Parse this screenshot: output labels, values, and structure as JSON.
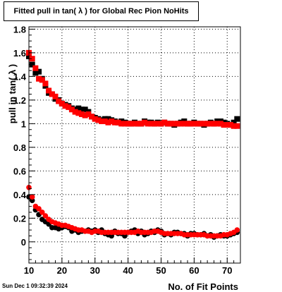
{
  "title": "Fitted pull in tan( λ ) for Global Rec Pion NoHits",
  "footer_date": "Sun Dec  1 09:32:39 2024",
  "colors": {
    "series_black": "#000000",
    "series_red": "#ff0000",
    "grid": "#000000"
  },
  "chart_data": {
    "type": "scatter",
    "title": "Fitted pull in tan( λ ) for Global Rec Pion NoHits",
    "xlabel": "No. of Fit Points",
    "ylabel": "pull in tan( λ )",
    "xlim": [
      10,
      74
    ],
    "ylim": [
      -0.18,
      1.82
    ],
    "x_ticks": [
      "10",
      "20",
      "30",
      "40",
      "50",
      "60",
      "70"
    ],
    "y_ticks": [
      "0",
      "0.2",
      "0.4",
      "0.6",
      "0.8",
      "1",
      "1.2",
      "1.4",
      "1.6",
      "1.8"
    ],
    "grid": true,
    "legend": "none",
    "x": [
      10,
      11,
      12,
      13,
      14,
      15,
      16,
      17,
      18,
      19,
      20,
      21,
      22,
      23,
      24,
      25,
      26,
      27,
      28,
      29,
      30,
      31,
      32,
      33,
      34,
      35,
      36,
      37,
      38,
      39,
      40,
      41,
      42,
      43,
      44,
      45,
      46,
      47,
      48,
      49,
      50,
      51,
      52,
      53,
      54,
      55,
      56,
      57,
      58,
      59,
      60,
      61,
      62,
      63,
      64,
      65,
      66,
      67,
      68,
      69,
      70,
      71,
      72,
      73
    ],
    "series": [
      {
        "color": "black",
        "marker": "square",
        "values": [
          1.57,
          1.5,
          1.43,
          1.44,
          1.38,
          1.32,
          1.26,
          1.25,
          1.21,
          1.2,
          1.17,
          1.16,
          1.15,
          1.13,
          1.12,
          1.13,
          1.12,
          1.12,
          1.1,
          1.06,
          1.05,
          1.04,
          1.03,
          1.04,
          1.04,
          1.03,
          1.02,
          1.01,
          1.02,
          1.01,
          1.0,
          1.0,
          1.01,
          1.0,
          1.0,
          1.02,
          1.01,
          1.01,
          1.0,
          1.01,
          1.0,
          1.01,
          1.0,
          1.0,
          0.99,
          1.0,
          1.01,
          1.02,
          1.0,
          1.0,
          1.01,
          1.0,
          1.0,
          0.99,
          1.0,
          1.01,
          1.0,
          1.02,
          1.02,
          1.01,
          1.0,
          0.99,
          1.01,
          1.04
        ]
      },
      {
        "color": "red",
        "marker": "square",
        "values": [
          1.6,
          1.55,
          1.47,
          1.38,
          1.37,
          1.34,
          1.28,
          1.25,
          1.23,
          1.19,
          1.17,
          1.15,
          1.14,
          1.12,
          1.1,
          1.09,
          1.08,
          1.07,
          1.08,
          1.06,
          1.04,
          1.03,
          1.02,
          1.02,
          1.01,
          1.02,
          1.01,
          1.01,
          1.0,
          1.0,
          1.0,
          1.0,
          1.0,
          1.0,
          1.0,
          1.01,
          1.0,
          1.0,
          1.0,
          1.0,
          1.0,
          1.01,
          1.0,
          1.0,
          1.0,
          1.0,
          1.0,
          1.0,
          1.0,
          1.0,
          1.0,
          1.0,
          1.0,
          1.0,
          1.0,
          1.0,
          1.0,
          1.0,
          1.0,
          0.99,
          0.99,
          0.99,
          0.98,
          0.98
        ]
      },
      {
        "color": "black",
        "marker": "circle",
        "values": [
          0.38,
          0.35,
          0.27,
          0.23,
          0.19,
          0.17,
          0.15,
          0.12,
          0.12,
          0.11,
          0.12,
          0.13,
          0.12,
          0.09,
          0.1,
          0.08,
          0.09,
          0.09,
          0.1,
          0.09,
          0.1,
          0.08,
          0.1,
          0.07,
          0.06,
          0.05,
          0.09,
          0.07,
          0.07,
          0.05,
          0.08,
          0.09,
          0.1,
          0.07,
          0.09,
          0.06,
          0.07,
          0.09,
          0.08,
          0.1,
          0.09,
          0.06,
          0.07,
          0.06,
          0.08,
          0.08,
          0.07,
          0.07,
          0.05,
          0.07,
          0.07,
          0.06,
          0.06,
          0.07,
          0.05,
          0.06,
          0.04,
          0.05,
          0.06,
          0.05,
          0.05,
          0.06,
          0.07,
          0.08
        ]
      },
      {
        "color": "red",
        "marker": "circle",
        "values": [
          0.46,
          0.38,
          0.3,
          0.28,
          0.25,
          0.22,
          0.19,
          0.17,
          0.16,
          0.15,
          0.14,
          0.14,
          0.13,
          0.12,
          0.11,
          0.1,
          0.1,
          0.09,
          0.09,
          0.08,
          0.09,
          0.09,
          0.08,
          0.08,
          0.08,
          0.08,
          0.08,
          0.08,
          0.08,
          0.08,
          0.08,
          0.08,
          0.08,
          0.09,
          0.08,
          0.08,
          0.08,
          0.08,
          0.09,
          0.09,
          0.08,
          0.07,
          0.07,
          0.07,
          0.07,
          0.07,
          0.07,
          0.06,
          0.06,
          0.06,
          0.06,
          0.06,
          0.06,
          0.06,
          0.05,
          0.05,
          0.05,
          0.05,
          0.05,
          0.06,
          0.06,
          0.07,
          0.08,
          0.1
        ]
      }
    ]
  }
}
